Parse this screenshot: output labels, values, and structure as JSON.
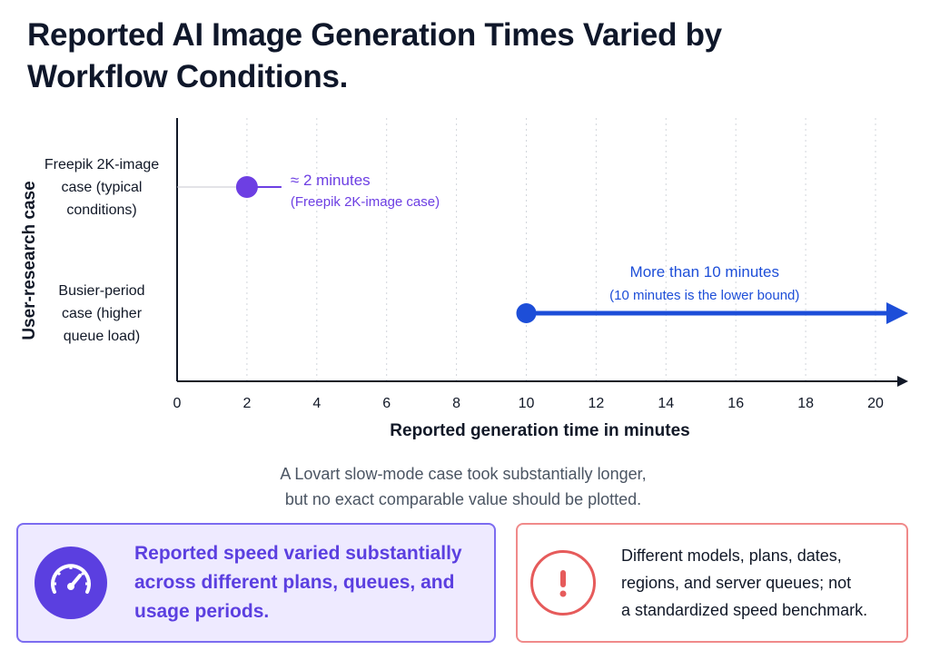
{
  "title": "Reported AI Image Generation Times Varied by Workflow Conditions.",
  "chart_data": {
    "type": "scatter",
    "title": "Reported AI Image Generation Times Varied by Workflow Conditions.",
    "xlabel": "Reported generation time in minutes",
    "ylabel": "User-research case",
    "xlim": [
      0,
      20
    ],
    "x_ticks": [
      0,
      2,
      4,
      6,
      8,
      10,
      12,
      14,
      16,
      18,
      20
    ],
    "grid": "vertical dotted",
    "categories": [
      [
        "Freepik 2K-image",
        "case (typical",
        "conditions)"
      ],
      [
        "Busier-period",
        "case (higher",
        "queue load)"
      ]
    ],
    "points": [
      {
        "x": 2,
        "color": "#6d3fe3",
        "label_main": "≈ 2 minutes",
        "label_sub": "(Freepik 2K-image case)",
        "open_ended": false
      },
      {
        "x": 10,
        "color": "#1d4ed8",
        "label_main": "More than 10 minutes",
        "label_sub": "(10 minutes is the lower bound)",
        "open_ended": true
      }
    ]
  },
  "note": [
    "A Lovart slow-mode case took substantially longer,",
    "but no exact comparable value should be plotted."
  ],
  "card_left": {
    "icon": "speedometer-icon",
    "lines": [
      "Reported speed varied substantially",
      "across different plans, queues, and",
      "usage periods."
    ],
    "accent": "#5b3fe0"
  },
  "card_right": {
    "icon": "exclamation-icon",
    "lines": [
      "Different models, plans, dates,",
      "regions, and server queues; not",
      "a standardized speed benchmark."
    ],
    "accent": "#e65b5b"
  }
}
